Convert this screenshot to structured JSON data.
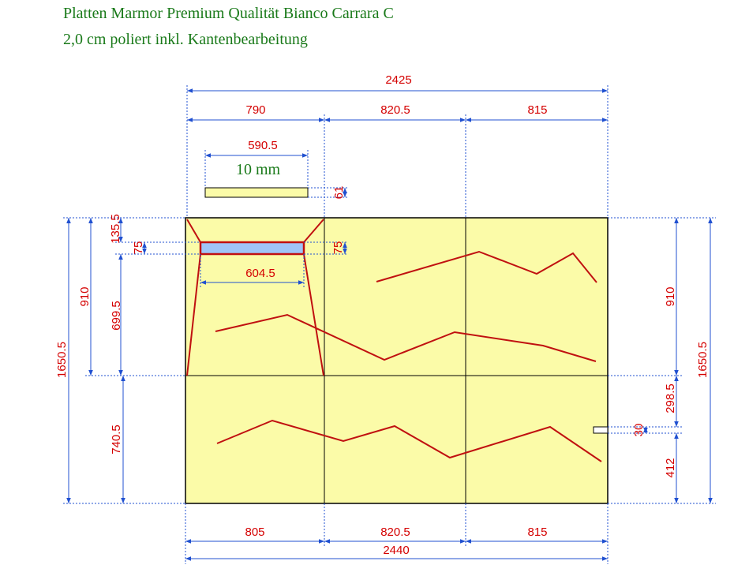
{
  "header": {
    "line1": "Platten Marmor Premium Qualität Bianco Carrara C",
    "line2": "2,0 cm poliert inkl. Kantenbearbeitung"
  },
  "inset_label": "10 mm",
  "dimensions": [
    "2425",
    "790",
    "820.5",
    "815",
    "590.5",
    "61",
    "75",
    "75",
    "604.5",
    "1650.5",
    "910",
    "135.5",
    "699.5",
    "740.5",
    "910",
    "1650.5",
    "298.5",
    "30",
    "412",
    "805",
    "820.5",
    "815",
    "2440"
  ]
}
